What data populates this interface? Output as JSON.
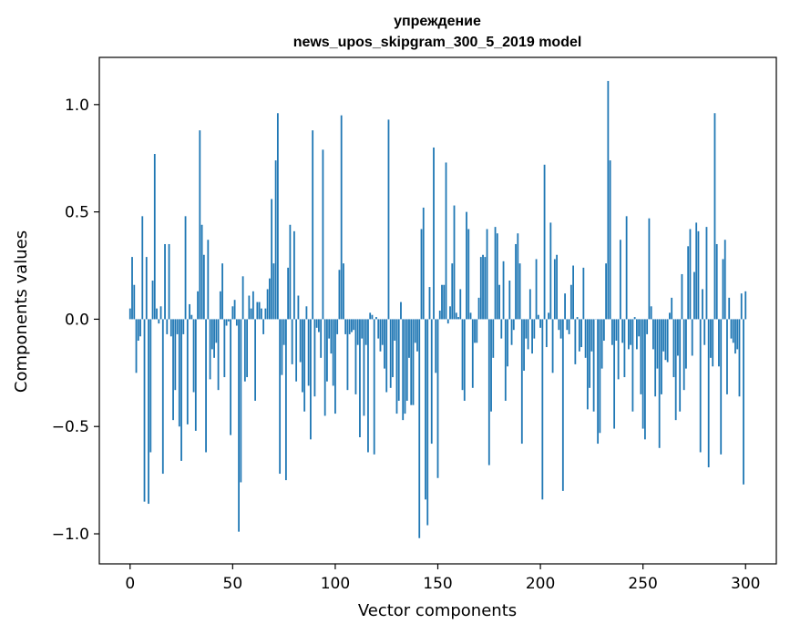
{
  "chart_data": {
    "type": "bar",
    "title_line1": "упреждение",
    "title_line2": "news_upos_skipgram_300_5_2019 model",
    "xlabel": "Vector components",
    "ylabel": "Components values",
    "xlim": [
      -15,
      315
    ],
    "ylim": [
      -1.14,
      1.22
    ],
    "xticks": [
      0,
      50,
      100,
      150,
      200,
      250,
      300
    ],
    "xtick_labels": [
      "0",
      "50",
      "100",
      "150",
      "200",
      "250",
      "300"
    ],
    "yticks": [
      -1.0,
      -0.5,
      0.0,
      0.5,
      1.0
    ],
    "ytick_labels": [
      "−1.0",
      "−0.5",
      "0.0",
      "0.5",
      "1.0"
    ],
    "bar_color": "#1f77b4",
    "values": [
      0.05,
      0.29,
      0.16,
      -0.25,
      -0.1,
      -0.08,
      0.48,
      -0.85,
      0.29,
      -0.86,
      -0.62,
      0.18,
      0.77,
      0.05,
      -0.02,
      0.06,
      -0.72,
      0.35,
      -0.07,
      0.35,
      -0.08,
      -0.47,
      -0.33,
      -0.07,
      -0.5,
      -0.66,
      -0.07,
      0.48,
      -0.49,
      0.07,
      0.02,
      -0.34,
      -0.52,
      0.13,
      0.88,
      0.44,
      0.3,
      -0.62,
      0.37,
      -0.28,
      -0.14,
      -0.18,
      -0.11,
      -0.33,
      0.13,
      0.26,
      -0.27,
      -0.03,
      -0.01,
      -0.54,
      0.06,
      0.09,
      -0.03,
      -0.99,
      -0.76,
      0.2,
      -0.29,
      -0.27,
      0.11,
      0.05,
      0.13,
      -0.38,
      0.08,
      0.08,
      0.05,
      -0.07,
      0.05,
      0.14,
      0.19,
      0.56,
      0.26,
      0.74,
      0.96,
      -0.72,
      -0.26,
      -0.12,
      -0.75,
      0.24,
      0.44,
      -0.21,
      0.41,
      -0.29,
      0.11,
      -0.2,
      -0.34,
      -0.43,
      0.06,
      -0.31,
      -0.56,
      0.88,
      -0.36,
      -0.04,
      -0.06,
      -0.18,
      0.79,
      -0.45,
      -0.29,
      -0.09,
      -0.16,
      -0.31,
      -0.44,
      -0.07,
      0.23,
      0.95,
      0.26,
      -0.07,
      -0.33,
      -0.07,
      -0.06,
      -0.05,
      -0.35,
      -0.12,
      -0.55,
      -0.09,
      -0.45,
      -0.12,
      -0.62,
      0.03,
      0.02,
      -0.63,
      0.01,
      -0.09,
      -0.15,
      -0.12,
      -0.23,
      -0.34,
      0.93,
      -0.32,
      -0.27,
      -0.1,
      -0.44,
      -0.38,
      0.08,
      -0.47,
      -0.44,
      -0.38,
      -0.18,
      -0.4,
      -0.4,
      -0.11,
      -0.15,
      -1.02,
      0.42,
      0.52,
      -0.84,
      -0.96,
      0.15,
      -0.58,
      0.8,
      -0.25,
      -0.74,
      0.04,
      0.16,
      0.16,
      0.73,
      -0.02,
      0.06,
      0.26,
      0.53,
      0.03,
      0.01,
      0.14,
      -0.33,
      -0.38,
      0.5,
      0.42,
      0.03,
      -0.32,
      -0.11,
      -0.11,
      0.1,
      0.29,
      0.3,
      0.29,
      0.42,
      -0.68,
      -0.43,
      -0.18,
      0.43,
      0.4,
      0.16,
      -0.09,
      0.27,
      -0.38,
      -0.22,
      0.18,
      -0.12,
      -0.05,
      0.35,
      0.4,
      0.26,
      -0.58,
      -0.24,
      -0.09,
      -0.14,
      0.14,
      -0.16,
      -0.09,
      0.28,
      0.02,
      -0.04,
      -0.84,
      0.72,
      -0.13,
      0.03,
      0.45,
      -0.25,
      0.28,
      0.3,
      -0.05,
      -0.09,
      -0.8,
      0.12,
      -0.05,
      -0.07,
      0.16,
      0.25,
      -0.21,
      0.01,
      -0.15,
      -0.13,
      0.24,
      -0.18,
      -0.42,
      -0.32,
      -0.15,
      -0.43,
      0.0,
      -0.58,
      -0.53,
      -0.23,
      -0.1,
      0.26,
      1.11,
      0.74,
      -0.12,
      -0.51,
      -0.1,
      -0.28,
      0.37,
      -0.11,
      -0.27,
      0.48,
      -0.14,
      -0.12,
      -0.43,
      0.01,
      -0.14,
      -0.08,
      -0.35,
      -0.51,
      -0.56,
      -0.07,
      0.47,
      0.06,
      -0.14,
      -0.36,
      -0.23,
      -0.6,
      -0.35,
      -0.15,
      -0.19,
      -0.2,
      0.03,
      0.1,
      -0.27,
      -0.47,
      -0.17,
      -0.43,
      0.21,
      -0.33,
      -0.23,
      0.34,
      0.42,
      -0.17,
      0.22,
      0.45,
      0.41,
      -0.62,
      0.14,
      -0.12,
      0.43,
      -0.69,
      -0.18,
      -0.22,
      0.96,
      0.35,
      -0.22,
      -0.63,
      0.28,
      0.37,
      -0.35,
      0.1,
      -0.09,
      -0.11,
      -0.16,
      -0.14,
      -0.36,
      0.12,
      -0.77,
      0.13
    ]
  }
}
